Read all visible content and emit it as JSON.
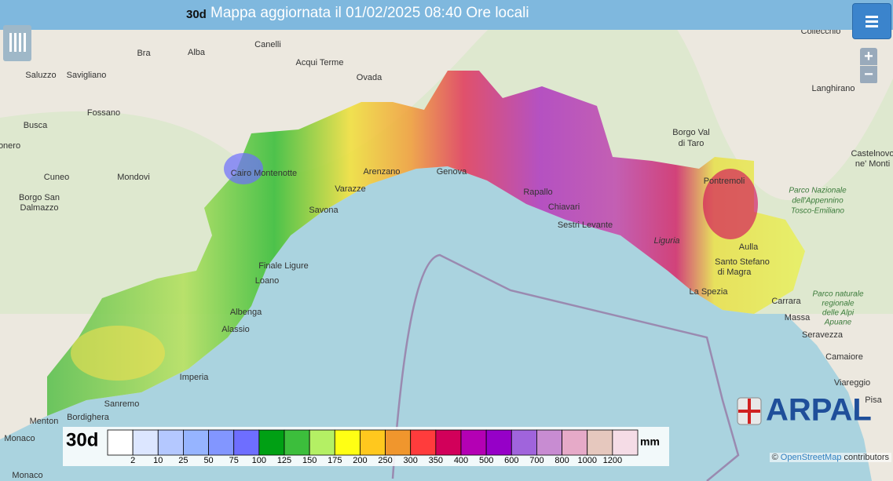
{
  "header": {
    "period": "30d",
    "title": "Mappa aggiornata il 01/02/2025 08:40 Ore locali"
  },
  "zoom": {
    "in": "+",
    "out": "−"
  },
  "places": [
    "Canelli",
    "Alba",
    "Bra",
    "Acqui Terme",
    "Ovada",
    "Saluzzo",
    "Savigliano",
    "Fossano",
    "Busca",
    "Cuneo",
    "Mondovi",
    "Borgo San",
    "Dalmazzo",
    "Cairo Montenotte",
    "Varazze",
    "Arenzano",
    "Genova",
    "Savona",
    "Finale Ligure",
    "Loano",
    "Albenga",
    "Alassio",
    "Imperia",
    "Sanremo",
    "Bordighera",
    "Menton",
    "Monaco",
    "Monaco",
    "Rapallo",
    "Chiavari",
    "Sestri Levante",
    "Liguria",
    "La Spezia",
    "Santo Stefano",
    "di Magra",
    "Aulla",
    "Pontremoli",
    "Borgo Val",
    "di Taro",
    "Langhirano",
    "Collecchio",
    "Castelnovo",
    "ne' Monti",
    "Carrara",
    "Massa",
    "Seravezza",
    "Camaiore",
    "Viareggio",
    "Pisa",
    "onero"
  ],
  "parks": [
    "Parco Nazionale",
    "dell'Appennino",
    "Tosco-Emiliano",
    "Parco naturale",
    "regionale",
    "delle Alpi",
    "Apuane"
  ],
  "logo": "ARPAL",
  "legend": {
    "period": "30d",
    "unit": "mm",
    "colors": [
      "#ffffff",
      "#dce6ff",
      "#b4c8ff",
      "#96b4ff",
      "#8296ff",
      "#6e6eff",
      "#00a014",
      "#3cbe3c",
      "#b4f064",
      "#ffff14",
      "#ffc81e",
      "#f0962d",
      "#ff3c3c",
      "#d2005a",
      "#b400b4",
      "#9600c8",
      "#a064dc",
      "#c88cd2",
      "#e6aac8",
      "#e6c8be",
      "#f5dce6"
    ],
    "labels": [
      2,
      10,
      25,
      50,
      75,
      100,
      125,
      150,
      175,
      200,
      250,
      300,
      350,
      400,
      500,
      600,
      700,
      800,
      1000,
      1200
    ]
  },
  "attribution": {
    "prefix": "©",
    "link": "OpenStreetMap",
    "suffix": "contributors"
  }
}
